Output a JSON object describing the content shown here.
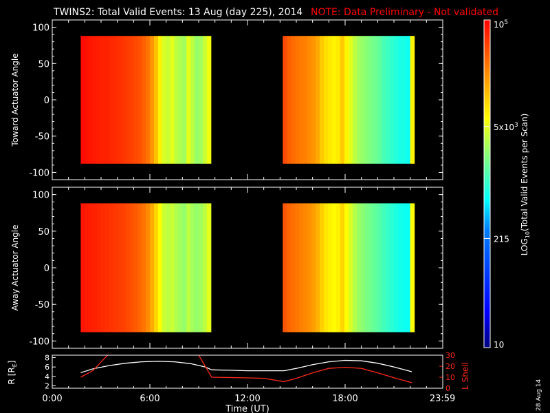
{
  "title": "TWINS2: Total Valid Events: 13 Aug (day 225), 2014",
  "note": "NOTE: Data Preliminary - Not validated",
  "date_stamp": "28 Aug 14",
  "colors": {
    "background": "#000000",
    "axes": "#ffffff",
    "note": "#ff0000",
    "r_line": "#ffffff",
    "lshell_line": "#ff2a1a"
  },
  "chart_data": [
    {
      "type": "heatmap",
      "panel": "toward",
      "ylabel": "Toward Actuator Angle",
      "xlim_hours": [
        0,
        24
      ],
      "ylim": [
        -110,
        110
      ],
      "yticks": [
        100,
        50,
        0,
        -50,
        -100
      ],
      "data_blocks": [
        {
          "x_start": "1:45",
          "x_end": "9:45",
          "y_range": [
            -88,
            88
          ],
          "level_profile": [
            4.95,
            4.92,
            4.9,
            4.88,
            4.86,
            4.85,
            4.84,
            4.82,
            4.8,
            4.78,
            4.75,
            4.72,
            4.7,
            4.66,
            4.62,
            4.55,
            4.45,
            4.3,
            4.1,
            3.85,
            3.65,
            3.6,
            3.7,
            3.55,
            3.5,
            3.45,
            3.7,
            3.55,
            3.4,
            3.45,
            3.6,
            3.75
          ]
        },
        {
          "x_start": "14:10",
          "x_end": "22:15",
          "y_range": [
            -88,
            88
          ],
          "level_profile": [
            4.65,
            4.55,
            4.5,
            4.45,
            4.42,
            4.4,
            4.35,
            4.3,
            4.2,
            4.05,
            3.95,
            3.9,
            3.85,
            3.9,
            4.05,
            3.85,
            3.7,
            3.55,
            3.45,
            3.4,
            3.35,
            3.3,
            3.25,
            3.2,
            3.1,
            3.05,
            3.0,
            2.95,
            2.9,
            2.9,
            2.85,
            3.85
          ]
        }
      ],
      "zscale": "log10",
      "zlim": [
        10,
        100000
      ]
    },
    {
      "type": "heatmap",
      "panel": "away",
      "ylabel": "Away Actuator Angle",
      "xlim_hours": [
        0,
        24
      ],
      "ylim": [
        -110,
        110
      ],
      "yticks": [
        100,
        50,
        0,
        -50,
        -100
      ],
      "data_blocks": [
        {
          "x_start": "1:45",
          "x_end": "9:45",
          "y_range": [
            -88,
            88
          ],
          "level_profile": [
            4.9,
            4.88,
            4.86,
            4.84,
            4.82,
            4.8,
            4.78,
            4.76,
            4.74,
            4.72,
            4.7,
            4.66,
            4.62,
            4.58,
            4.52,
            4.45,
            4.35,
            4.2,
            4.0,
            3.8,
            3.6,
            3.55,
            3.6,
            3.5,
            3.45,
            3.4,
            3.55,
            3.45,
            3.4,
            3.45,
            3.55,
            3.7
          ]
        },
        {
          "x_start": "14:10",
          "x_end": "22:15",
          "y_range": [
            -88,
            88
          ],
          "level_profile": [
            4.6,
            4.52,
            4.48,
            4.44,
            4.4,
            4.36,
            4.32,
            4.26,
            4.16,
            4.02,
            3.92,
            3.86,
            3.82,
            3.86,
            4.0,
            3.82,
            3.66,
            3.52,
            3.42,
            3.36,
            3.3,
            3.25,
            3.2,
            3.15,
            3.08,
            3.02,
            2.98,
            2.92,
            2.88,
            2.86,
            2.84,
            3.8
          ]
        }
      ],
      "zscale": "log10",
      "zlim": [
        10,
        100000
      ]
    },
    {
      "type": "line",
      "panel": "orbit",
      "ylabel_left": "R [R",
      "ylabel_left_sub": "E",
      "ylabel_left_end": "]",
      "ylabel_right": "L Shell",
      "xlabel": "Time (UT)",
      "xticks": [
        "0:00",
        "6:00",
        "12:00",
        "18:00",
        "23:59"
      ],
      "xtick_hours": [
        0,
        6,
        12,
        18,
        23.983
      ],
      "ylim_left": [
        1.5,
        8.5
      ],
      "yticks_left": [
        2,
        4,
        6,
        8
      ],
      "ylim_right": [
        0,
        30
      ],
      "yticks_right": [
        0,
        10,
        20,
        30
      ],
      "series": [
        {
          "name": "R",
          "x": [
            1.75,
            2.5,
            3.5,
            4.5,
            5.5,
            6.5,
            7.5,
            8.5,
            9.4,
            9.8,
            11,
            12,
            13,
            14.25,
            15,
            16,
            17,
            18,
            19,
            20,
            21,
            22.1
          ],
          "y": [
            4.8,
            5.6,
            6.3,
            6.8,
            7.1,
            7.2,
            7.1,
            6.7,
            6.0,
            5.4,
            5.3,
            5.2,
            5.2,
            5.2,
            5.7,
            6.5,
            7.1,
            7.4,
            7.3,
            6.8,
            6.0,
            5.0
          ]
        },
        {
          "name": "L Shell",
          "x": [
            1.75,
            2.5,
            3.4,
            3.5,
            8.8,
            9.0,
            9.8,
            11,
            12,
            13,
            14.25,
            15,
            16,
            17,
            18,
            19,
            20,
            21,
            22.1
          ],
          "y": [
            10,
            16,
            30,
            35,
            35,
            30,
            10,
            9.7,
            9.4,
            9,
            6,
            9,
            14,
            18,
            19,
            18,
            14,
            9.5,
            5
          ]
        }
      ]
    }
  ],
  "colorbar": {
    "label": "LOG",
    "label_sub": "10",
    "label_rest": "(Total Valid Events per Scan)",
    "tick_labels": [
      {
        "label": "10",
        "value": 10
      },
      {
        "label": "215",
        "value": 215
      },
      {
        "label": "5x10",
        "sup": "3",
        "value": 5000
      },
      {
        "label": "10",
        "sup": "5",
        "value": 100000
      }
    ]
  }
}
